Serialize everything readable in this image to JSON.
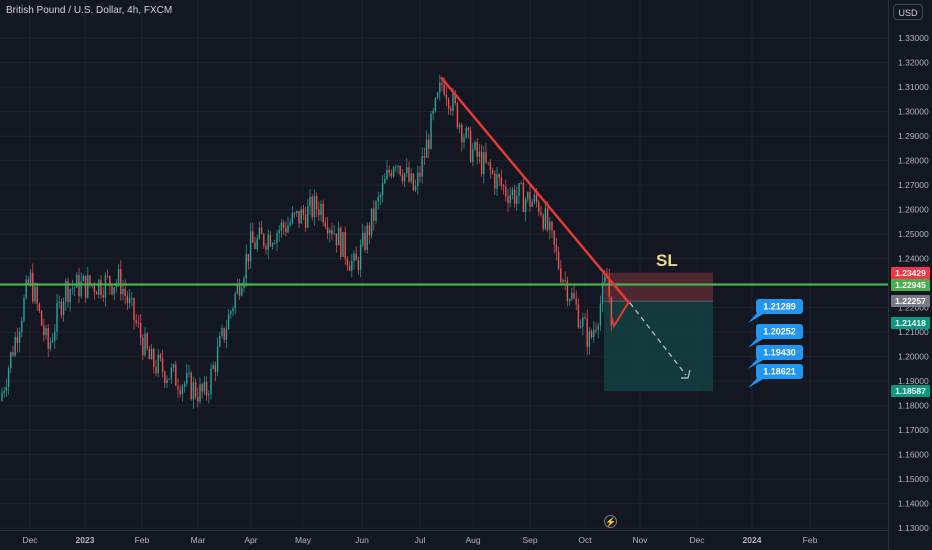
{
  "header": {
    "symbol": "British Pound / U.S. Dollar, 4h, FXCM",
    "currency": "USD"
  },
  "icons": {
    "replay": "lightning-icon"
  },
  "colors": {
    "background": "#131722",
    "up": "#26a69a",
    "down": "#ef5350",
    "trendline": "#e53935",
    "support": "#4caf50",
    "stop_zone": "#5a2a33",
    "target_zone": "#133e40",
    "callout": "#2196f3"
  },
  "chart_data": {
    "type": "candlestick",
    "title": "British Pound / U.S. Dollar, 4h, FXCM",
    "y_range": [
      1.125,
      1.345
    ],
    "x_ticks": [
      "Dec",
      "2023",
      "Feb",
      "Mar",
      "Apr",
      "May",
      "Jun",
      "Jul",
      "Aug",
      "Sep",
      "Oct",
      "Nov",
      "Dec",
      "2024",
      "Feb"
    ],
    "y_ticks": [
      "1.33000",
      "1.32000",
      "1.31000",
      "1.30000",
      "1.29000",
      "1.28000",
      "1.27000",
      "1.26000",
      "1.25000",
      "1.24000",
      "1.22000",
      "1.21000",
      "1.20000",
      "1.19000",
      "1.18000",
      "1.17000",
      "1.16000",
      "1.15000",
      "1.14000",
      "1.13000"
    ],
    "price_path": [
      {
        "t": "Dec",
        "price": 1.182
      },
      {
        "t": "Dec",
        "price": 1.232
      },
      {
        "t": "2023",
        "price": 1.203
      },
      {
        "t": "2023",
        "price": 1.228
      },
      {
        "t": "Feb",
        "price": 1.231
      },
      {
        "t": "Feb",
        "price": 1.198
      },
      {
        "t": "Mar",
        "price": 1.184
      },
      {
        "t": "Apr",
        "price": 1.245
      },
      {
        "t": "May",
        "price": 1.262
      },
      {
        "t": "Jun",
        "price": 1.236
      },
      {
        "t": "Jun",
        "price": 1.282
      },
      {
        "t": "Jul",
        "price": 1.267
      },
      {
        "t": "Jul",
        "price": 1.313
      },
      {
        "t": "Aug",
        "price": 1.285
      },
      {
        "t": "Aug",
        "price": 1.268
      },
      {
        "t": "Sep",
        "price": 1.262
      },
      {
        "t": "Sep",
        "price": 1.236
      },
      {
        "t": "Oct",
        "price": 1.206
      },
      {
        "t": "Oct",
        "price": 1.232
      },
      {
        "t": "Oct",
        "price": 1.216
      }
    ],
    "annotations": {
      "sl_label": "SL",
      "trendline": {
        "from": {
          "t": "Jul",
          "price": 1.314
        },
        "to": {
          "t": "Oct",
          "price": 1.223
        }
      },
      "support_price": 1.22945,
      "stop_zone": [
        1.2226,
        1.2343
      ],
      "target_zone": [
        1.1859,
        1.2226
      ],
      "callouts": [
        "1.21289",
        "1.20252",
        "1.19430",
        "1.18621"
      ]
    },
    "price_tags": [
      {
        "label": "1.23429",
        "color": "#f23645"
      },
      {
        "label": "1.22945",
        "color": "#4caf50"
      },
      {
        "label": "1.22257",
        "color": "#787b86"
      },
      {
        "label": "1.21418",
        "color": "#089981"
      },
      {
        "label": "1.18587",
        "color": "#089981"
      }
    ]
  }
}
